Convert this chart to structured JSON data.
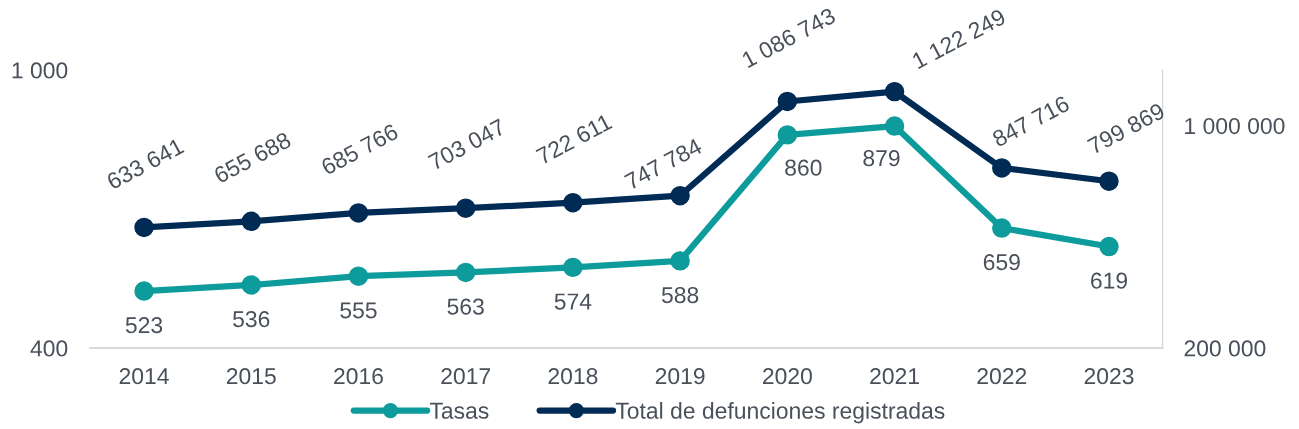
{
  "chart_data": {
    "type": "line",
    "categories": [
      "2014",
      "2015",
      "2016",
      "2017",
      "2018",
      "2019",
      "2020",
      "2021",
      "2022",
      "2023"
    ],
    "series": [
      {
        "name": "Tasas",
        "color": "#0e9b9b",
        "values": [
          523,
          536,
          555,
          563,
          574,
          588,
          860,
          879,
          659,
          619
        ],
        "value_labels": [
          "523",
          "536",
          "555",
          "563",
          "574",
          "588",
          "860",
          "879",
          "659",
          "619"
        ]
      },
      {
        "name": "Total de defunciones registradas",
        "color": "#002b55",
        "axis": "y2",
        "values": [
          633641,
          655688,
          685766,
          703047,
          722611,
          747784,
          1086743,
          1122249,
          847716,
          799869
        ],
        "value_labels": [
          "633 641",
          "655 688",
          "685 766",
          "703 047",
          "722 611",
          "747 784",
          "1 086 743",
          "1 122 249",
          "847 716",
          "799 869"
        ]
      }
    ],
    "ylim": [
      400,
      1000
    ],
    "yticks": [
      400,
      {
        "value": 1000,
        "label": "1 000"
      }
    ],
    "y2lim": [
      200000,
      1200000
    ],
    "y2ticks": [
      {
        "value": 200000,
        "label": "200 000"
      },
      {
        "value": 1000000,
        "label": "1 000 000"
      }
    ],
    "grid": false,
    "legend": "bottom",
    "marker": "circle",
    "line_style": "solid"
  }
}
